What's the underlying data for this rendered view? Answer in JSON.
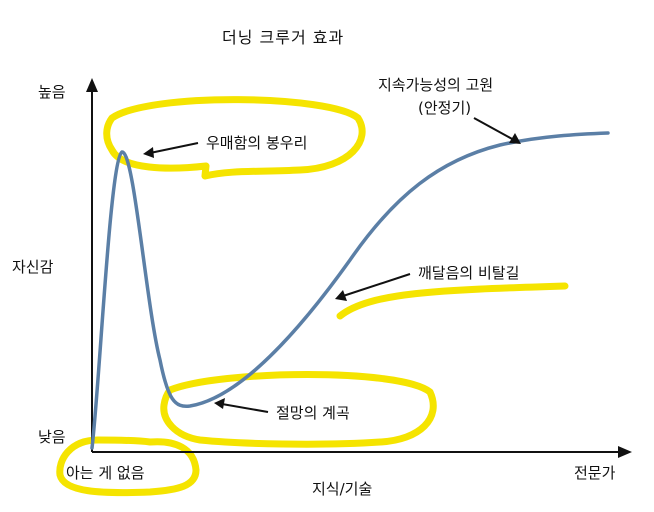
{
  "title": "더닝 크루거 효과",
  "axes": {
    "y_label": "자신감",
    "y_high": "높음",
    "y_low": "낮음",
    "x_label": "지식/기술",
    "x_low": "아는 게 없음",
    "x_high": "전문가"
  },
  "annotations": {
    "peak": "우매함의 봉우리",
    "valley": "절망의 계곡",
    "slope": "깨달음의 비탈길",
    "plateau_line1": "지속가능성의 고원",
    "plateau_line2": "(안정기)"
  },
  "colors": {
    "curve": "#5b7fa6",
    "highlight": "#f5e400",
    "axis": "#111111",
    "text": "#111111"
  }
}
